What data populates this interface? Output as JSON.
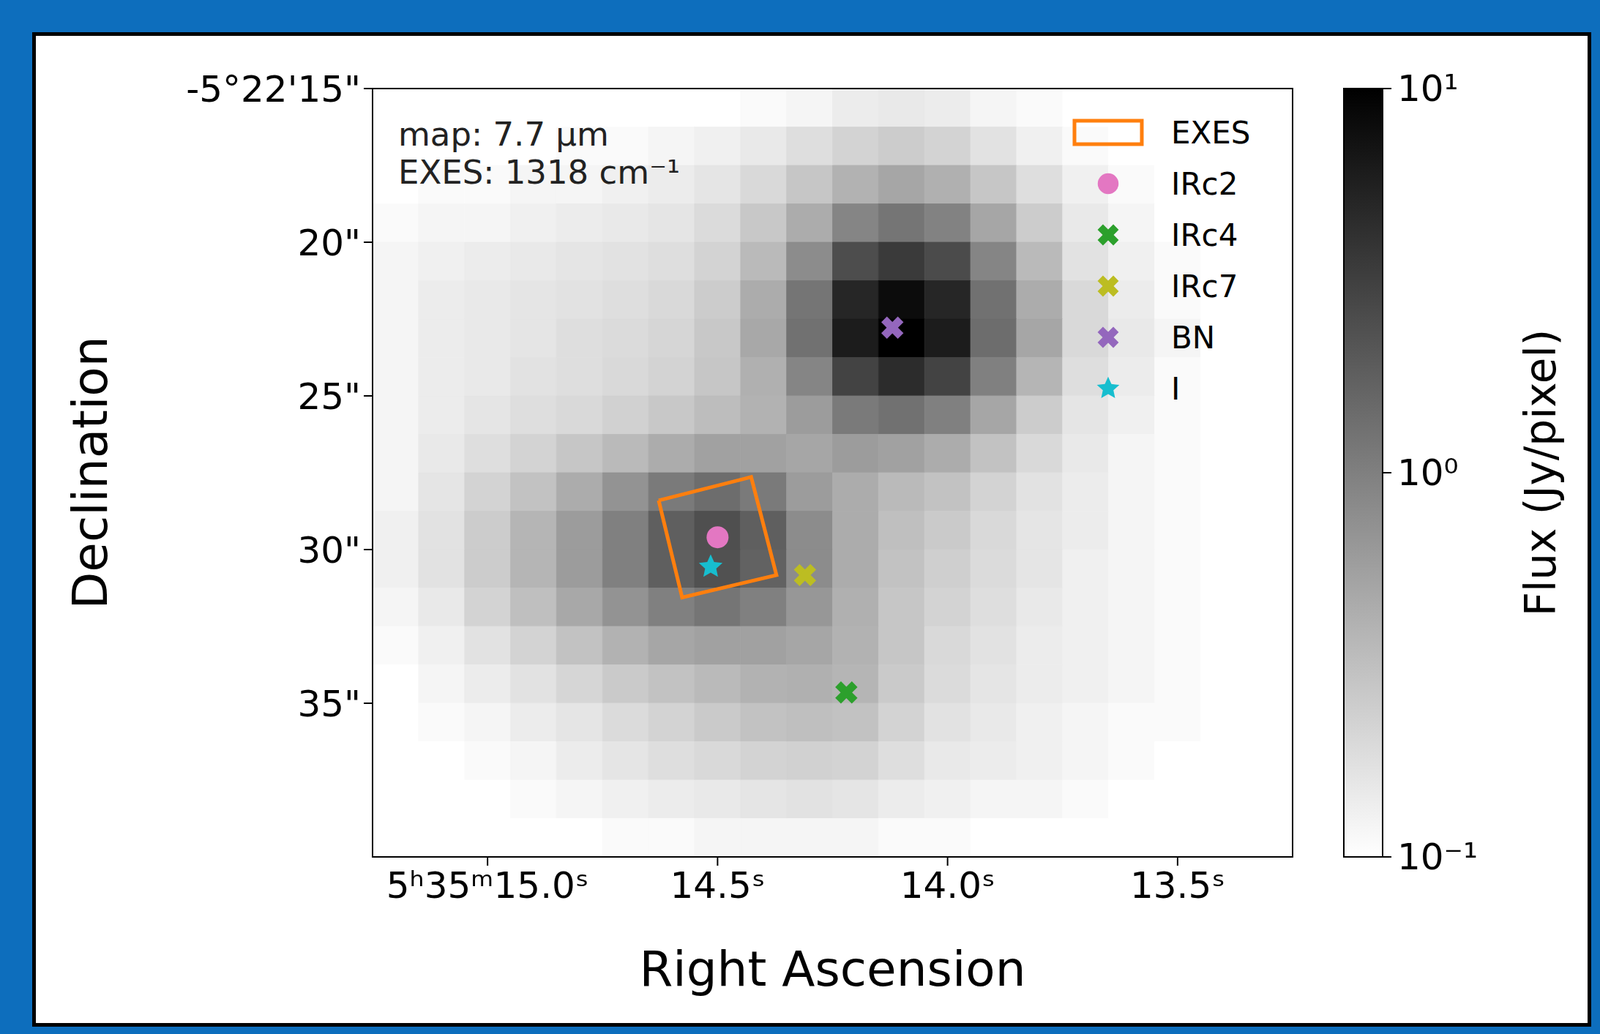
{
  "chart_data": {
    "type": "heatmap",
    "xlabel": "Right Ascension",
    "ylabel": "Declination",
    "annotations": [
      "map: 7.7 µm",
      "EXES: 1318 cm⁻¹"
    ],
    "xlim": [
      15.25,
      13.25
    ],
    "xticks": [
      {
        "value": 15,
        "label": "5ʰ35ᵐ15.0ˢ"
      },
      {
        "value": 14.5,
        "label": "14.5ˢ"
      },
      {
        "value": 14,
        "label": "14.0ˢ"
      },
      {
        "value": 13.5,
        "label": "13.5ˢ"
      }
    ],
    "ylim": [
      40,
      15
    ],
    "yticks": [
      {
        "value": 15,
        "label": "-5°22'15\""
      },
      {
        "value": 20,
        "label": "20\""
      },
      {
        "value": 25,
        "label": "25\""
      },
      {
        "value": 30,
        "label": "30\""
      },
      {
        "value": 35,
        "label": "35\""
      }
    ],
    "legend": "upper right",
    "heatmap": {
      "x_edges": [
        15.25,
        15.15,
        15.05,
        14.95,
        14.85,
        14.75,
        14.65,
        14.55,
        14.45,
        14.35,
        14.25,
        14.15,
        14.05,
        13.95,
        13.85,
        13.75,
        13.65,
        13.55,
        13.45,
        13.35,
        13.25
      ],
      "y_edges": [
        15,
        16.25,
        17.5,
        18.75,
        20,
        21.25,
        22.5,
        23.75,
        25,
        26.25,
        27.5,
        28.75,
        30,
        31.25,
        32.5,
        33.75,
        35,
        36.25,
        37.5,
        38.75,
        40
      ],
      "cells": [
        [
          0.1,
          0.1,
          0.1,
          0.1,
          0.1,
          0.1,
          0.1,
          0.1,
          0.11,
          0.12,
          0.14,
          0.15,
          0.14,
          0.12,
          0.11,
          0.1,
          0.1,
          0.1,
          0.1,
          0.1
        ],
        [
          0.1,
          0.1,
          0.1,
          0.1,
          0.11,
          0.11,
          0.12,
          0.13,
          0.15,
          0.18,
          0.22,
          0.25,
          0.22,
          0.17,
          0.13,
          0.11,
          0.1,
          0.1,
          0.1,
          0.1
        ],
        [
          0.1,
          0.11,
          0.11,
          0.12,
          0.12,
          0.13,
          0.14,
          0.16,
          0.2,
          0.28,
          0.4,
          0.5,
          0.42,
          0.28,
          0.18,
          0.13,
          0.11,
          0.1,
          0.1,
          0.1
        ],
        [
          0.11,
          0.12,
          0.12,
          0.13,
          0.14,
          0.15,
          0.16,
          0.19,
          0.27,
          0.45,
          0.9,
          1.2,
          0.95,
          0.5,
          0.25,
          0.15,
          0.12,
          0.1,
          0.1,
          0.1
        ],
        [
          0.12,
          0.13,
          0.14,
          0.15,
          0.16,
          0.17,
          0.18,
          0.22,
          0.35,
          0.8,
          2.5,
          3.5,
          2.6,
          0.9,
          0.35,
          0.17,
          0.13,
          0.11,
          0.1,
          0.1
        ],
        [
          0.12,
          0.14,
          0.15,
          0.16,
          0.17,
          0.18,
          0.2,
          0.25,
          0.45,
          1.2,
          5,
          8,
          5,
          1.3,
          0.45,
          0.2,
          0.14,
          0.11,
          0.1,
          0.1
        ],
        [
          0.12,
          0.14,
          0.15,
          0.16,
          0.18,
          0.19,
          0.21,
          0.27,
          0.48,
          1.3,
          6,
          10,
          6,
          1.4,
          0.5,
          0.2,
          0.15,
          0.12,
          0.1,
          0.1
        ],
        [
          0.12,
          0.14,
          0.15,
          0.17,
          0.18,
          0.2,
          0.22,
          0.28,
          0.42,
          0.9,
          3,
          4.5,
          3,
          1,
          0.38,
          0.18,
          0.14,
          0.11,
          0.1,
          0.1
        ],
        [
          0.12,
          0.14,
          0.16,
          0.18,
          0.2,
          0.23,
          0.27,
          0.33,
          0.4,
          0.6,
          1.1,
          1.3,
          1,
          0.5,
          0.25,
          0.16,
          0.13,
          0.11,
          0.1,
          0.1
        ],
        [
          0.12,
          0.15,
          0.18,
          0.22,
          0.28,
          0.35,
          0.45,
          0.55,
          0.55,
          0.5,
          0.6,
          0.55,
          0.45,
          0.3,
          0.2,
          0.15,
          0.12,
          0.11,
          0.1,
          0.1
        ],
        [
          0.12,
          0.16,
          0.22,
          0.3,
          0.45,
          0.7,
          1.1,
          1.4,
          1.1,
          0.6,
          0.45,
          0.35,
          0.3,
          0.22,
          0.17,
          0.14,
          0.12,
          0.11,
          0.1,
          0.1
        ],
        [
          0.13,
          0.17,
          0.25,
          0.38,
          0.6,
          1,
          1.8,
          2.4,
          1.8,
          0.8,
          0.45,
          0.32,
          0.26,
          0.2,
          0.16,
          0.14,
          0.12,
          0.11,
          0.1,
          0.1
        ],
        [
          0.13,
          0.17,
          0.25,
          0.38,
          0.6,
          1,
          1.8,
          2.3,
          1.7,
          0.8,
          0.45,
          0.3,
          0.24,
          0.19,
          0.16,
          0.13,
          0.12,
          0.11,
          0.1,
          0.1
        ],
        [
          0.12,
          0.15,
          0.22,
          0.32,
          0.48,
          0.7,
          1,
          1.2,
          1,
          0.65,
          0.42,
          0.28,
          0.22,
          0.18,
          0.15,
          0.13,
          0.12,
          0.11,
          0.1,
          0.1
        ],
        [
          0.11,
          0.13,
          0.17,
          0.22,
          0.3,
          0.4,
          0.5,
          0.55,
          0.55,
          0.5,
          0.4,
          0.28,
          0.2,
          0.17,
          0.14,
          0.13,
          0.12,
          0.11,
          0.1,
          0.1
        ],
        [
          0.1,
          0.12,
          0.14,
          0.17,
          0.21,
          0.26,
          0.3,
          0.35,
          0.4,
          0.42,
          0.38,
          0.26,
          0.19,
          0.16,
          0.14,
          0.13,
          0.12,
          0.11,
          0.1,
          0.1
        ],
        [
          0.1,
          0.11,
          0.12,
          0.14,
          0.16,
          0.19,
          0.22,
          0.26,
          0.3,
          0.32,
          0.3,
          0.22,
          0.17,
          0.15,
          0.13,
          0.12,
          0.11,
          0.11,
          0.1,
          0.1
        ],
        [
          0.1,
          0.1,
          0.11,
          0.12,
          0.14,
          0.16,
          0.18,
          0.2,
          0.22,
          0.23,
          0.22,
          0.18,
          0.15,
          0.14,
          0.13,
          0.12,
          0.11,
          0.1,
          0.1,
          0.1
        ],
        [
          0.1,
          0.1,
          0.1,
          0.11,
          0.12,
          0.13,
          0.14,
          0.15,
          0.16,
          0.17,
          0.16,
          0.14,
          0.13,
          0.12,
          0.12,
          0.11,
          0.1,
          0.1,
          0.1,
          0.1
        ],
        [
          0.1,
          0.1,
          0.1,
          0.1,
          0.1,
          0.11,
          0.11,
          0.12,
          0.12,
          0.12,
          0.12,
          0.11,
          0.11,
          0.1,
          0.1,
          0.1,
          0.1,
          0.1,
          0.1,
          0.1
        ]
      ]
    },
    "colorbar": {
      "label": "Flux (Jy/pixel)",
      "range": [
        0.1,
        10
      ],
      "log": true,
      "ticks": [
        {
          "value": 0.1,
          "label": "10⁻¹"
        },
        {
          "value": 1,
          "label": "10⁰"
        },
        {
          "value": 10,
          "label": "10¹"
        }
      ]
    },
    "series": [
      {
        "name": "EXES",
        "type": "polygon",
        "color": "#ff7f0e",
        "x": [
          14.628,
          14.427,
          14.372,
          14.577
        ],
        "y": [
          28.4,
          27.64,
          30.83,
          31.56
        ]
      },
      {
        "name": "IRc2",
        "type": "scatter",
        "marker": "circle",
        "color": "#e377c2",
        "x": [
          14.5
        ],
        "y": [
          29.6
        ]
      },
      {
        "name": "IRc4",
        "type": "scatter",
        "marker": "x",
        "color": "#2ca02c",
        "x": [
          14.22
        ],
        "y": [
          34.65
        ]
      },
      {
        "name": "IRc7",
        "type": "scatter",
        "marker": "x",
        "color": "#bcbd22",
        "x": [
          14.31
        ],
        "y": [
          30.83
        ]
      },
      {
        "name": "BN",
        "type": "scatter",
        "marker": "x",
        "color": "#9467bd",
        "x": [
          14.12
        ],
        "y": [
          22.78
        ]
      },
      {
        "name": "I",
        "type": "scatter",
        "marker": "star",
        "color": "#17becf",
        "x": [
          14.515
        ],
        "y": [
          30.56
        ]
      }
    ]
  }
}
